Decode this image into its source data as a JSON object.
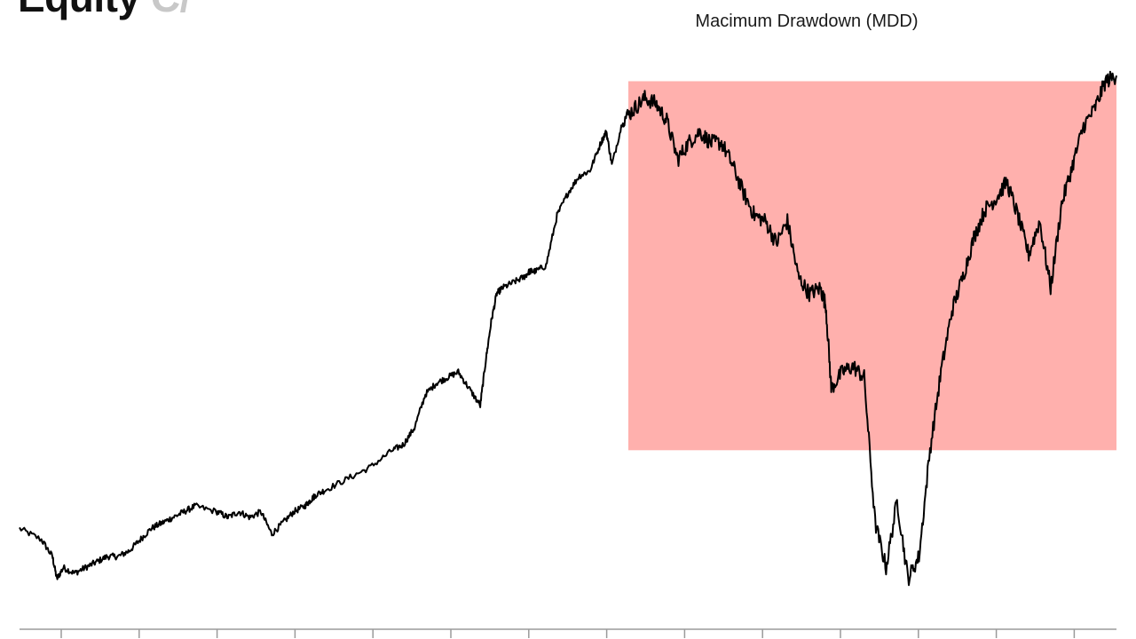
{
  "header": {
    "title": "Equity",
    "title_suffix": "C/"
  },
  "chart_data": {
    "type": "line",
    "title": "",
    "xlabel": "",
    "ylabel": "",
    "grid": false,
    "legend": "none",
    "x_ticks_count": 14,
    "xlim": [
      0,
      100
    ],
    "ylim": [
      0,
      100
    ],
    "annotation": {
      "label": "Macimum Drawdown (MDD)",
      "x_range": [
        55.5,
        100
      ],
      "y_range": [
        29,
        95
      ],
      "fill_color": "#ffb0ad"
    },
    "line_color": "#000000",
    "series": [
      {
        "x": [
          0,
          2,
          3,
          3.4,
          4,
          5,
          6,
          7,
          8,
          9,
          10,
          11,
          12,
          13,
          14,
          15,
          16,
          18,
          19,
          20,
          21,
          22,
          23,
          24,
          25,
          26,
          26.5,
          27,
          28,
          30,
          32,
          34,
          35,
          36,
          37,
          38,
          39,
          40,
          41,
          42,
          42.5,
          43,
          43.5,
          44,
          45,
          46,
          46.5,
          47,
          48,
          49,
          50,
          51,
          52,
          53,
          53.5,
          54,
          55,
          56,
          57,
          58,
          59,
          60,
          61,
          62,
          63,
          64,
          65,
          66,
          67,
          68,
          69,
          70,
          71,
          72,
          73,
          73.5,
          74,
          75,
          76,
          77,
          78,
          79,
          80,
          81,
          82,
          83,
          84,
          85,
          86,
          87,
          88,
          89,
          90,
          91,
          92,
          93,
          94,
          95,
          96,
          97,
          98,
          99,
          100
        ],
        "y": [
          15,
          13,
          10,
          6,
          8,
          7,
          8,
          9,
          10,
          10,
          11,
          13,
          15,
          16,
          17,
          18,
          19,
          18,
          17,
          18,
          17,
          18,
          14,
          16,
          18,
          19,
          20,
          21,
          22,
          24,
          26,
          29,
          30,
          33,
          39,
          41,
          42,
          43,
          40,
          37,
          45,
          52,
          57,
          58,
          59,
          60,
          61,
          61,
          62,
          71,
          75,
          78,
          79,
          84,
          86,
          80,
          88,
          90,
          92,
          91,
          88,
          81,
          84,
          86,
          84,
          84,
          80,
          75,
          71,
          70,
          66,
          70,
          60,
          57,
          58,
          55,
          40,
          43,
          44,
          42,
          16,
          8,
          20,
          6,
          10,
          29,
          43,
          54,
          60,
          67,
          72,
          74,
          77,
          71,
          64,
          70,
          58,
          73,
          80,
          87,
          90,
          95,
          96
        ]
      }
    ]
  }
}
